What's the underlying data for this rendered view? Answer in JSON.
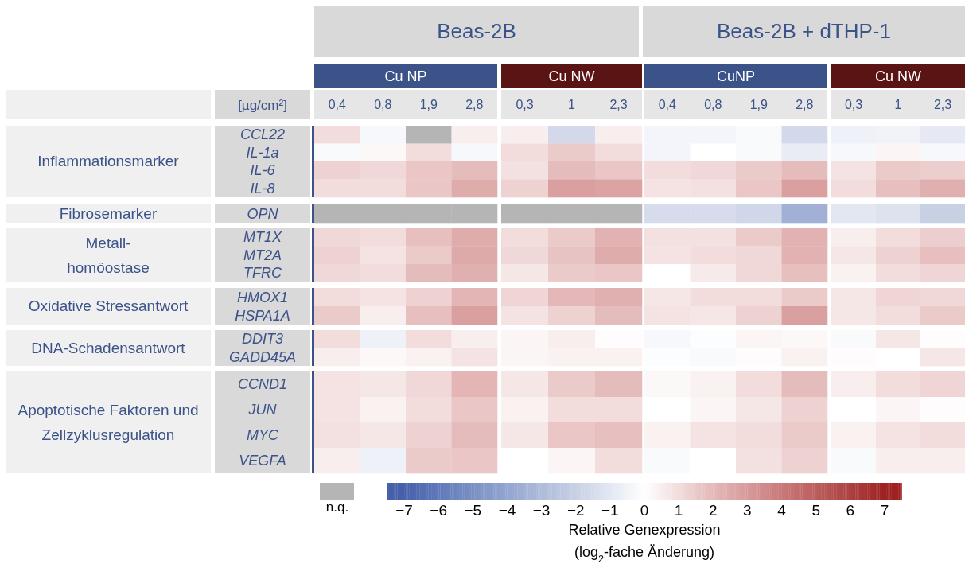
{
  "chart_data": {
    "type": "heatmap",
    "categories": [
      "0,4",
      "0,8",
      "1,9",
      "2,8",
      "0,3",
      "1",
      "2,3",
      "0,4",
      "0,8",
      "1,9",
      "2,8",
      "0,3",
      "1",
      "2,3"
    ],
    "y_categories": [
      "CCL22",
      "IL-1a",
      "IL-6",
      "IL-8",
      "OPN",
      "MT1X",
      "MT2A",
      "TFRC",
      "HMOX1",
      "HSPA1A",
      "DDIT3",
      "GADD45A",
      "CCND1",
      "JUN",
      "MYC",
      "VEGFA"
    ],
    "cells": [
      [
        1.0,
        -0.3,
        null,
        0.5,
        0.5,
        -1.6,
        0.5,
        -0.4,
        -0.4,
        -0.2,
        -1.6,
        -0.6,
        -0.5,
        -0.9
      ],
      [
        -0.2,
        0.2,
        1.0,
        -0.3,
        1.0,
        1.5,
        1.0,
        -0.4,
        0,
        -0.2,
        -0.8,
        -0.3,
        0.3,
        -0.3
      ],
      [
        1.3,
        1.1,
        1.6,
        1.9,
        0.9,
        1.9,
        1.6,
        1.0,
        1.1,
        1.5,
        1.9,
        0.8,
        1.5,
        1.4
      ],
      [
        1.0,
        1.0,
        1.6,
        2.4,
        1.3,
        2.8,
        2.7,
        0.8,
        0.9,
        1.6,
        2.8,
        1.0,
        1.8,
        2.3
      ],
      [
        null,
        null,
        null,
        null,
        null,
        null,
        null,
        -1.5,
        -1.5,
        -1.7,
        -3.5,
        -1.0,
        -1.2,
        -2.0
      ],
      [
        1.1,
        1.0,
        1.8,
        2.4,
        1.0,
        1.5,
        2.2,
        0.9,
        0.9,
        1.5,
        2.2,
        0.5,
        1.0,
        1.4
      ],
      [
        1.3,
        0.8,
        1.5,
        2.5,
        1.1,
        1.7,
        2.4,
        0.8,
        1.0,
        1.1,
        2.2,
        0.7,
        1.3,
        1.8
      ],
      [
        1.1,
        1.0,
        1.9,
        2.3,
        0.7,
        1.5,
        1.6,
        0,
        0.6,
        1.1,
        1.8,
        0.4,
        1.0,
        1.2
      ],
      [
        1.0,
        0.8,
        1.3,
        2.1,
        1.2,
        2.0,
        2.3,
        0.7,
        1.0,
        1.0,
        1.5,
        0.7,
        1.2,
        1.1
      ],
      [
        1.5,
        0.5,
        1.8,
        2.8,
        0.8,
        1.3,
        1.9,
        0.8,
        0.7,
        1.3,
        2.8,
        0.7,
        1.0,
        1.5
      ],
      [
        1.0,
        -0.6,
        1.0,
        0.5,
        0.3,
        0.5,
        0.1,
        -0.3,
        -0.1,
        0.3,
        0.2,
        -0.2,
        0.7,
        0.1
      ],
      [
        0.5,
        0.2,
        0.4,
        0.8,
        0.3,
        0.4,
        0.4,
        -0.1,
        -0.2,
        0.1,
        0.4,
        0.1,
        0,
        0.7
      ],
      [
        0.8,
        0.7,
        1.1,
        2.1,
        0.7,
        1.5,
        1.9,
        0.2,
        0.4,
        1.0,
        1.9,
        0.5,
        1.0,
        1.2
      ],
      [
        0.8,
        0.4,
        1.0,
        1.6,
        0.4,
        1.0,
        1.0,
        0,
        0.3,
        0.7,
        1.3,
        0,
        0.3,
        0.1
      ],
      [
        0.9,
        0.7,
        1.3,
        1.9,
        0.7,
        1.6,
        1.8,
        0.4,
        0.8,
        1.0,
        1.5,
        0.4,
        0.8,
        1.0
      ],
      [
        0.5,
        -0.6,
        1.5,
        1.6,
        0,
        0.3,
        1.0,
        -0.2,
        0,
        0.9,
        1.3,
        -0.2,
        0.5,
        0.5
      ]
    ],
    "clim": [
      -7.5,
      7.5
    ],
    "cticks": [
      -7,
      -6,
      -5,
      -4,
      -3,
      -2,
      -1,
      0,
      1,
      2,
      3,
      4,
      5,
      6,
      7
    ],
    "clabel": "Relative Genexpression\n(log$_{2}$-fache Änderung)",
    "annotations": [
      "Beas-2B",
      "Beas-2B + dTHP-1",
      "Cu NP",
      "Cu NW",
      "CuNP",
      "Cu NW",
      "[µg/cm²]",
      "Inflammationsmarker",
      "Fibrosemarker",
      "Metall-\nhomöostase",
      "Oxidative Stressantwort",
      "DNA-Schadensantwort",
      "Apoptotische Faktoren und\nZellzyklusregulation",
      "n.q."
    ]
  }
}
